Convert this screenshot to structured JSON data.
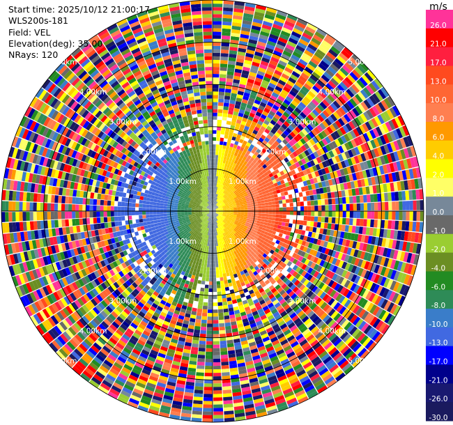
{
  "info": {
    "start_time": "Start time: 2025/10/12 21:00:17",
    "station": "WLS200s-181",
    "field": "Field: VEL",
    "elevation": "Elevation(deg): 35.00",
    "nrays": "NRays: 120"
  },
  "chart_data": {
    "type": "polar-ppi",
    "field": "VEL",
    "units": "m/s",
    "range_ring_labels": [
      "1.00km",
      "2.00km",
      "3.00km",
      "4.00km",
      "5.00km"
    ],
    "range_ring_km": [
      1,
      2,
      3,
      4,
      5
    ],
    "max_range_km": 5.0,
    "nrays": 120,
    "colorbar": {
      "unit_label": "m/s",
      "bins": [
        {
          "label": "26.0",
          "color": "#ff3399"
        },
        {
          "label": "21.0",
          "color": "#ff0000"
        },
        {
          "label": "17.0",
          "color": "#ff1f3f"
        },
        {
          "label": "13.0",
          "color": "#ff4a1f"
        },
        {
          "label": "10.0",
          "color": "#ff6633"
        },
        {
          "label": "8.0",
          "color": "#ff7f50"
        },
        {
          "label": "6.0",
          "color": "#ff9900"
        },
        {
          "label": "4.0",
          "color": "#ffcc00"
        },
        {
          "label": "2.0",
          "color": "#ffff00"
        },
        {
          "label": "1.0",
          "color": "#ffff66"
        },
        {
          "label": "0.0",
          "color": "#778899"
        },
        {
          "label": "-1.0",
          "color": "#696969"
        },
        {
          "label": "-2.0",
          "color": "#9acd32"
        },
        {
          "label": "-4.0",
          "color": "#6b8e23"
        },
        {
          "label": "-6.0",
          "color": "#228b22"
        },
        {
          "label": "-8.0",
          "color": "#2e8b57"
        },
        {
          "label": "-10.0",
          "color": "#3a7dc9"
        },
        {
          "label": "-13.0",
          "color": "#4169e1"
        },
        {
          "label": "-17.0",
          "color": "#0000ff"
        },
        {
          "label": "-21.0",
          "color": "#00008b"
        },
        {
          "label": "-26.0",
          "color": "#191970"
        },
        {
          "label": "-30.0",
          "color": "#1a1a5e"
        }
      ]
    }
  }
}
